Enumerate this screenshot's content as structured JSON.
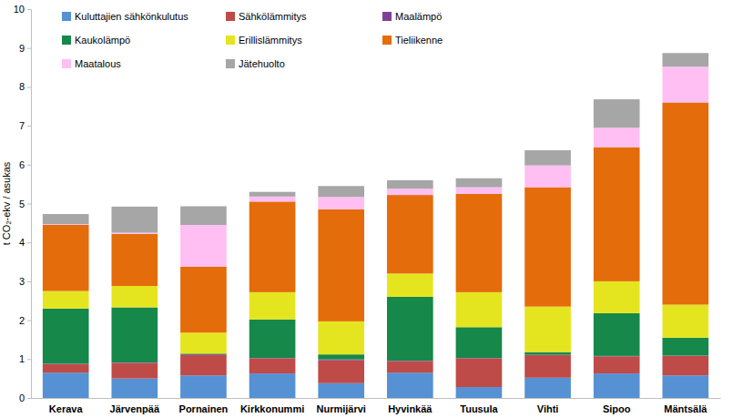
{
  "chart_data": {
    "type": "bar",
    "stacked": true,
    "grid": false,
    "legend": "top-left",
    "y_label": "t CO₂-ekv / asukas",
    "categories": [
      "Kerava",
      "Järvenpää",
      "Pornainen",
      "Kirkkonummi",
      "Nurmijärvi",
      "Hyvinkää",
      "Tuusula",
      "Vihti",
      "Sipoo",
      "Mäntsälä"
    ],
    "ylim": [
      0,
      10
    ],
    "yticks": [
      0,
      1,
      2,
      3,
      4,
      5,
      6,
      7,
      8,
      9,
      10
    ],
    "series": [
      {
        "name": "Kuluttajien sähkönkulutus",
        "color": "#5591d3",
        "values": [
          0.65,
          0.5,
          0.58,
          0.63,
          0.38,
          0.65,
          0.28,
          0.52,
          0.63,
          0.58
        ]
      },
      {
        "name": "Sähkölämmitys",
        "color": "#be4b48",
        "values": [
          0.22,
          0.4,
          0.52,
          0.39,
          0.59,
          0.3,
          0.74,
          0.58,
          0.44,
          0.5
        ]
      },
      {
        "name": "Maalämpö",
        "color": "#7f3f98",
        "values": [
          0.01,
          0.01,
          0.02,
          0.01,
          0.02,
          0.01,
          0.01,
          0.01,
          0.01,
          0.01
        ]
      },
      {
        "name": "Kaukolämpö",
        "color": "#16884a",
        "values": [
          1.42,
          1.42,
          0.02,
          0.99,
          0.13,
          1.64,
          0.79,
          0.07,
          1.1,
          0.46
        ]
      },
      {
        "name": "Erillislämmitys",
        "color": "#e5e51f",
        "values": [
          0.45,
          0.55,
          0.54,
          0.7,
          0.85,
          0.6,
          0.9,
          1.17,
          0.82,
          0.85
        ]
      },
      {
        "name": "Tieliikenne",
        "color": "#e46c0a",
        "values": [
          1.7,
          1.34,
          1.7,
          2.33,
          2.88,
          2.02,
          2.53,
          3.07,
          3.45,
          5.2
        ]
      },
      {
        "name": "Maatalous",
        "color": "#ffbff3",
        "values": [
          0.02,
          0.03,
          1.07,
          0.13,
          0.32,
          0.16,
          0.17,
          0.56,
          0.5,
          0.92
        ]
      },
      {
        "name": "Jätehuolto",
        "color": "#a6a6a6",
        "values": [
          0.26,
          0.67,
          0.48,
          0.12,
          0.28,
          0.22,
          0.23,
          0.39,
          0.73,
          0.35
        ]
      }
    ]
  }
}
